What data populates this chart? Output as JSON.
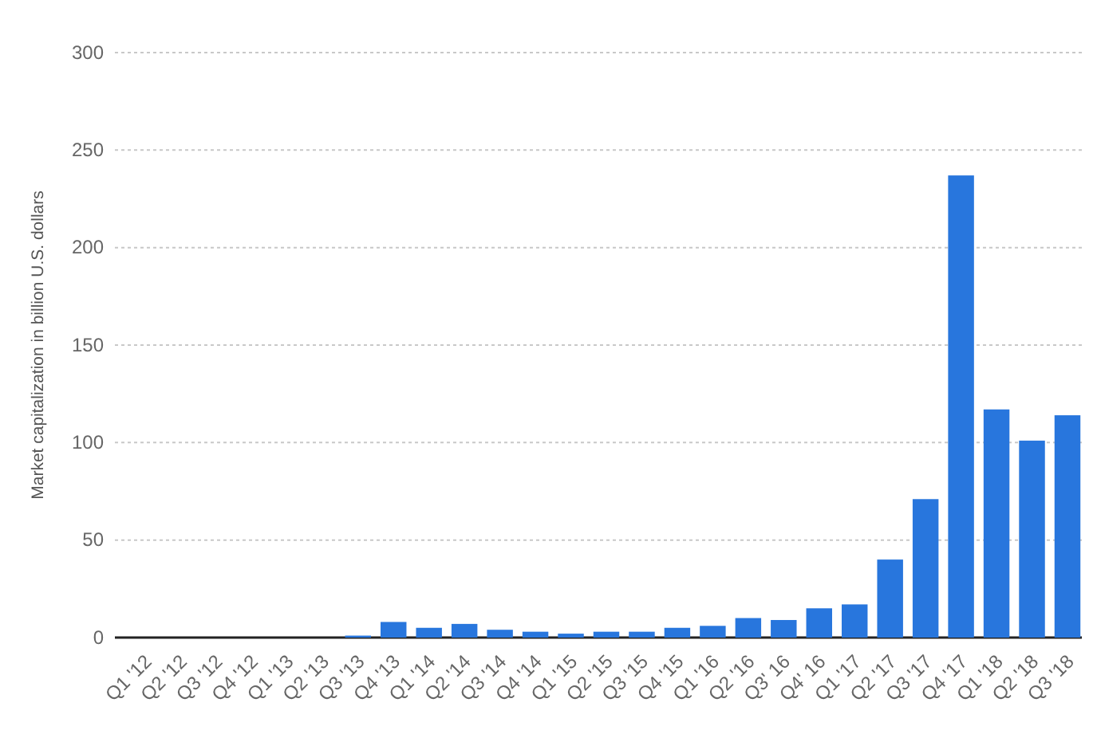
{
  "chart_data": {
    "type": "bar",
    "ylabel": "Market capitalization in billion U.S. dollars",
    "categories": [
      "Q1 '12",
      "Q2 '12",
      "Q3 '12",
      "Q4 '12",
      "Q1 '13",
      "Q2 '13",
      "Q3 '13",
      "Q4 '13",
      "Q1 '14",
      "Q2 '14",
      "Q3 '14",
      "Q4 '14",
      "Q1 '15",
      "Q2 '15",
      "Q3 '15",
      "Q4 '15",
      "Q1 '16",
      "Q2 '16",
      "Q3' 16",
      "Q4' 16",
      "Q1 '17",
      "Q2 '17",
      "Q3 '17",
      "Q4 '17",
      "Q1 '18",
      "Q2 '18",
      "Q3 '18"
    ],
    "values": [
      0,
      0,
      0,
      0,
      0,
      0,
      1,
      8,
      5,
      7,
      4,
      3,
      2,
      3,
      3,
      5,
      6,
      10,
      9,
      15,
      17,
      40,
      71,
      237,
      117,
      101,
      114
    ],
    "color": "#2876dd",
    "ylim": [
      0,
      300
    ],
    "yticks": [
      0,
      50,
      100,
      150,
      200,
      250,
      300
    ],
    "grid": "y"
  }
}
